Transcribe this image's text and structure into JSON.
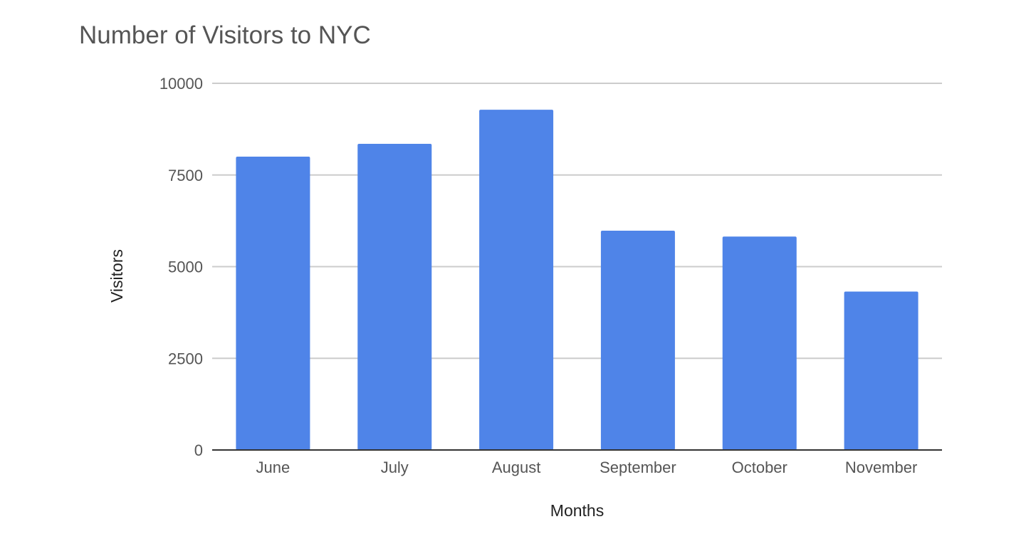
{
  "chart_data": {
    "type": "bar",
    "title": "Number of Visitors to NYC",
    "xlabel": "Months",
    "ylabel": "Visitors",
    "categories": [
      "June",
      "July",
      "August",
      "September",
      "October",
      "November"
    ],
    "series": [
      {
        "values": [
          8000,
          8350,
          9280,
          5980,
          5820,
          4320
        ]
      }
    ],
    "ylim": [
      0,
      10000
    ],
    "yticks": [
      0,
      2500,
      5000,
      7500,
      10000
    ],
    "ytick_labels": [
      "0",
      "2500",
      "5000",
      "7500",
      "10000"
    ],
    "grid": true,
    "legend": "none",
    "bar_color": "#4f84e8",
    "gridline_color": "#cccccc",
    "axis_color": "#333333"
  }
}
